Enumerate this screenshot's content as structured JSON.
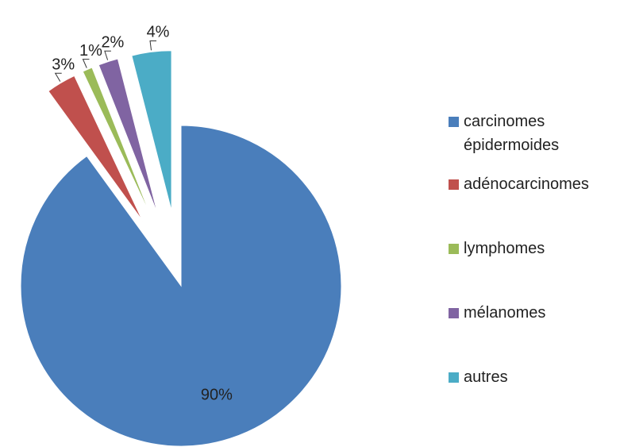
{
  "chart_data": {
    "type": "pie",
    "categories": [
      "carcinomes épidermoides",
      "adénocarcinomes",
      "lymphomes",
      "mélanomes",
      "autres"
    ],
    "values": [
      90,
      3,
      1,
      2,
      4
    ],
    "value_labels": [
      "90%",
      "3%",
      "1%",
      "2%",
      "4%"
    ],
    "colors": [
      "#4a7ebb",
      "#c0504d",
      "#9bbb59",
      "#8064a2",
      "#4bacc6"
    ],
    "legend": "right"
  }
}
